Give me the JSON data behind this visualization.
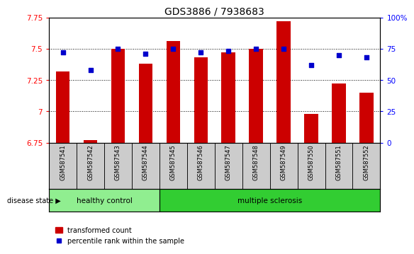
{
  "title": "GDS3886 / 7938683",
  "samples": [
    "GSM587541",
    "GSM587542",
    "GSM587543",
    "GSM587544",
    "GSM587545",
    "GSM587546",
    "GSM587547",
    "GSM587548",
    "GSM587549",
    "GSM587550",
    "GSM587551",
    "GSM587552"
  ],
  "transformed_counts": [
    7.32,
    6.77,
    7.5,
    7.38,
    7.56,
    7.43,
    7.47,
    7.5,
    7.72,
    6.98,
    7.22,
    7.15
  ],
  "percentile_ranks": [
    72,
    58,
    75,
    71,
    75,
    72,
    73,
    75,
    75,
    62,
    70,
    68
  ],
  "ylim_left": [
    6.75,
    7.75
  ],
  "ylim_right": [
    0,
    100
  ],
  "yticks_left": [
    6.75,
    7.0,
    7.25,
    7.5,
    7.75
  ],
  "ytick_labels_left": [
    "6.75",
    "7",
    "7.25",
    "7.5",
    "7.75"
  ],
  "yticks_right": [
    0,
    25,
    50,
    75,
    100
  ],
  "ytick_labels_right": [
    "0",
    "25",
    "50",
    "75",
    "100%"
  ],
  "bar_color": "#cc0000",
  "dot_color": "#0000cc",
  "bar_width": 0.5,
  "grid_yticks": [
    7.0,
    7.25,
    7.5
  ],
  "healthy_control_indices": [
    0,
    1,
    2,
    3
  ],
  "multiple_sclerosis_indices": [
    4,
    5,
    6,
    7,
    8,
    9,
    10,
    11
  ],
  "healthy_control_color": "#90ee90",
  "multiple_sclerosis_color": "#32cd32",
  "tick_label_gray_bg": "#cccccc",
  "legend_bar_label": "transformed count",
  "legend_dot_label": "percentile rank within the sample",
  "title_fontsize": 10,
  "tick_fontsize": 7.5,
  "label_fontsize": 7
}
